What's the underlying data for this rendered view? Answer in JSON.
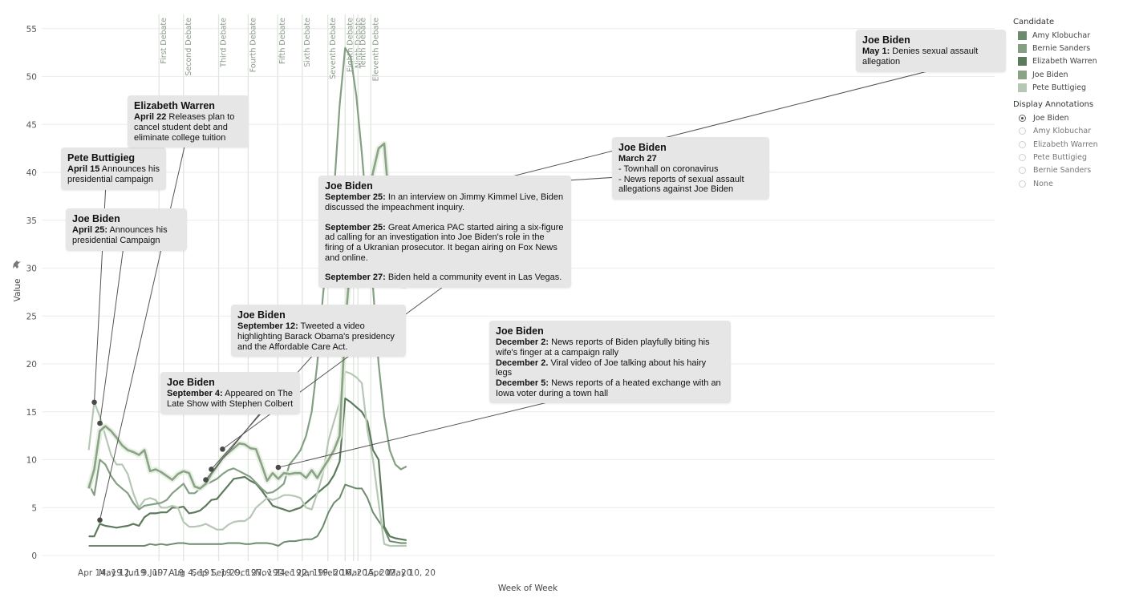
{
  "chart_data": {
    "type": "line",
    "xlabel": "Week of Week",
    "ylabel": "Value",
    "ylim": [
      0,
      55
    ],
    "y_ticks": [
      0,
      5,
      10,
      15,
      20,
      25,
      30,
      35,
      40,
      45,
      50,
      55
    ],
    "x_tick_labels": [
      "Apr 14, 19",
      "May 12, 19",
      "Jun 9, 19",
      "Jul 7, 19",
      "Aug 4, 19",
      "Sep 1, 19",
      "Sep 29, 19",
      "Oct 27, 19",
      "Nov 24, 19",
      "Dec 22, 19",
      "Jan 19, 20",
      "Feb 16, 20",
      "Mar 15, 20",
      "Apr 12, 20",
      "May 10, 20"
    ],
    "x_tick_week_index": [
      2,
      6,
      10,
      14,
      18,
      22,
      26,
      30,
      34,
      38,
      42,
      46,
      50,
      54,
      58
    ],
    "week_labels_note_first_week": "Mar 31, 19",
    "grid": true,
    "debates": [
      {
        "label": "First Debate",
        "week": 12.6
      },
      {
        "label": "Second Debate",
        "week": 17.0
      },
      {
        "label": "Third Debate",
        "week": 23.3
      },
      {
        "label": "Fourth Debate",
        "week": 28.6
      },
      {
        "label": "Fifth Debate",
        "week": 33.9
      },
      {
        "label": "Sixth Debate",
        "week": 38.3
      },
      {
        "label": "Seventh Debate",
        "week": 42.9
      },
      {
        "label": "Eighth Debate",
        "week": 46.0
      },
      {
        "label": "Ninth Debate",
        "week": 47.5
      },
      {
        "label": "Tenth Debate",
        "week": 48.3
      },
      {
        "label": "Eleventh Debate",
        "week": 50.6
      }
    ],
    "series": [
      {
        "name": "Joe Biden",
        "color": "#8aa388",
        "width": 2.6,
        "halo": true,
        "values": [
          7,
          9,
          13,
          13.5,
          13,
          12.3,
          11.5,
          11,
          10.8,
          10.5,
          11,
          8.8,
          9,
          8.7,
          8.3,
          7.9,
          8.5,
          8.8,
          8.6,
          7.2,
          7,
          7.5,
          8.5,
          9.3,
          10.2,
          10.7,
          11.2,
          11.7,
          11.6,
          11.2,
          11.1,
          9.5,
          7.8,
          8.6,
          8,
          8.6,
          8.5,
          8.6,
          8.6,
          8.1,
          8.9,
          8.1,
          9.1,
          10,
          11,
          12.5,
          24,
          31,
          35,
          37,
          37.3,
          40,
          42.5,
          43,
          36,
          30,
          28.2,
          28.1
        ]
      },
      {
        "name": "Bernie Sanders",
        "color": "#849f84",
        "width": 2.2,
        "values": [
          7.5,
          6.3,
          10,
          9.5,
          8.3,
          7.5,
          7,
          6.5,
          5.5,
          4.8,
          5.2,
          5.3,
          5.4,
          5.5,
          5.8,
          6.5,
          7,
          7.5,
          6.5,
          6.5,
          7,
          7.4,
          7.7,
          8,
          8.5,
          8.9,
          9.1,
          8.8,
          8.5,
          8.2,
          7.6,
          7,
          6.5,
          6.6,
          7,
          7.5,
          9.5,
          10.2,
          11,
          12.5,
          15,
          20,
          27,
          33,
          38,
          47,
          53,
          52,
          48,
          42,
          35,
          28,
          20,
          14.5,
          11,
          9.5,
          9,
          9.3
        ]
      },
      {
        "name": "Pete Buttigieg",
        "color": "#b6c7b5",
        "width": 2.2,
        "values": [
          11,
          16,
          14.5,
          12.5,
          10.5,
          9.5,
          9.5,
          8.5,
          6.5,
          5,
          5.8,
          6,
          5.8,
          5,
          5,
          5.2,
          5,
          3.5,
          3,
          3,
          3.1,
          3.3,
          3,
          2.7,
          2.7,
          3.2,
          3.5,
          3.6,
          3.6,
          4,
          5,
          5.5,
          6,
          5.8,
          6,
          6.3,
          6.3,
          6.2,
          6,
          5,
          4.8,
          6.5,
          8.5,
          12,
          14,
          16,
          19.2,
          19,
          18.6,
          18,
          13,
          10,
          5.5,
          1.2,
          1,
          1,
          1,
          1
        ]
      },
      {
        "name": "Elizabeth Warren",
        "color": "#5c7a5c",
        "width": 2.2,
        "values": [
          2,
          2,
          3.3,
          3.1,
          3,
          2.9,
          3,
          3.1,
          3.3,
          3.1,
          4,
          4.4,
          4.4,
          4.5,
          4.5,
          5,
          5,
          5.1,
          4.4,
          4.5,
          4.7,
          5.2,
          5.8,
          5.9,
          6.6,
          7.3,
          8,
          8.1,
          8.2,
          7.8,
          7.5,
          6.8,
          6,
          5.2,
          5,
          4.8,
          4.6,
          4.8,
          5,
          5.5,
          6,
          6.5,
          7,
          7.5,
          8.4,
          9.8,
          16.4,
          16,
          15.5,
          15,
          14,
          11,
          10,
          3,
          2,
          1.8,
          1.7,
          1.6
        ]
      },
      {
        "name": "Amy Klobuchar",
        "color": "#6e8a6e",
        "width": 2.0,
        "values": [
          1,
          1,
          1,
          1,
          1,
          1,
          1,
          1,
          1,
          1,
          1,
          1.2,
          1.1,
          1.2,
          1.1,
          1.2,
          1.3,
          1.3,
          1.2,
          1.2,
          1.2,
          1.2,
          1.2,
          1.2,
          1.2,
          1.3,
          1.3,
          1.3,
          1.2,
          1.2,
          1.3,
          1.3,
          1.3,
          1.2,
          1,
          1.4,
          1.5,
          1.5,
          1.6,
          1.7,
          1.7,
          2,
          3,
          4.5,
          5.5,
          6,
          7.4,
          7.2,
          7,
          7,
          6,
          4.5,
          3.6,
          2.8,
          1.5,
          1.4,
          1.3,
          1.3
        ]
      }
    ],
    "annotations": [
      {
        "who": "Pete Buttigieg",
        "week": 1,
        "y": 16,
        "lines": [
          {
            "bold": "April 15",
            "text": " Announces his presidential campaign"
          }
        ]
      },
      {
        "who": "Joe Biden",
        "week": 2,
        "y": 13.8,
        "lines": [
          {
            "bold": "April 25:",
            "text": " Announces his presidential Campaign"
          }
        ]
      },
      {
        "who": "Elizabeth Warren",
        "week": 2,
        "y": 3.7,
        "lines": [
          {
            "bold": "April 22",
            "text": " Releases plan to cancel student debt and eliminate college tuition"
          }
        ]
      },
      {
        "who": "Joe Biden",
        "week": 21,
        "y": 7.9,
        "lines": [
          {
            "bold": "September 4:",
            "text": " Appeared on The Late Show with Stephen Colbert"
          }
        ]
      },
      {
        "who": "Joe Biden",
        "week": 22,
        "y": 9,
        "lines": [
          {
            "bold": "September 12:",
            "text": " Tweeted a video highlighting Barack Obama's presidency and the Affordable Care Act."
          }
        ]
      },
      {
        "who": "Joe Biden",
        "week": 24,
        "y": 11.1,
        "lines": [
          {
            "bold": "September 25:",
            "text": " In an interview on Jimmy Kimmel Live, Biden discussed the impeachment inquiry."
          },
          {
            "bold": "September 25:",
            "text": " Great America PAC started airing a six-figure ad calling for an investigation into Joe Biden's role in the firing of a Ukranian prosecutor. It began airing on Fox News and online."
          },
          {
            "bold": "September 27:",
            "text": " Biden held a community event in Las Vegas."
          }
        ]
      },
      {
        "who": "Joe Biden",
        "week": 34,
        "y": 9.2,
        "lines": [
          {
            "bold": "December 2:",
            "text": " News reports of Biden playfully biting his wife's finger at a campaign rally"
          },
          {
            "bold": "December 2.",
            "text": " Viral video of Joe talking about his hairy legs"
          },
          {
            "bold": "December 5:",
            "text": " News reports of a heated exchange with an Iowa voter during a town hall"
          }
        ]
      },
      {
        "who": "Joe Biden",
        "week": 50,
        "y": 37.8,
        "lines": [
          {
            "bold": "March 27",
            "text": ""
          },
          {
            "bold": "",
            "text": "- Townhall on coronavirus"
          },
          {
            "bold": "",
            "text": "- News reports of sexual assault allegations against Joe Biden"
          }
        ]
      },
      {
        "who": "Joe Biden",
        "week": 55,
        "y": 36.5,
        "lines": [
          {
            "bold": "May 1:",
            "text": " Denies sexual assault allegation"
          }
        ]
      }
    ]
  },
  "legend": {
    "title": "Candidate",
    "items": [
      {
        "label": "Amy Klobuchar",
        "color": "#6e8a6e"
      },
      {
        "label": "Bernie Sanders",
        "color": "#849f84"
      },
      {
        "label": "Elizabeth Warren",
        "color": "#5c7a5c"
      },
      {
        "label": "Joe Biden",
        "color": "#8aa388"
      },
      {
        "label": "Pete Buttigieg",
        "color": "#b6c7b5"
      }
    ]
  },
  "display_annotations": {
    "title": "Display Annotations",
    "selected": "Joe Biden",
    "options": [
      "Joe Biden",
      "Amy Klobuchar",
      "Elizabeth Warren",
      "Pete Buttigieg",
      "Bernie Sanders",
      "None"
    ]
  },
  "icons": {
    "pin": "pin-icon"
  }
}
